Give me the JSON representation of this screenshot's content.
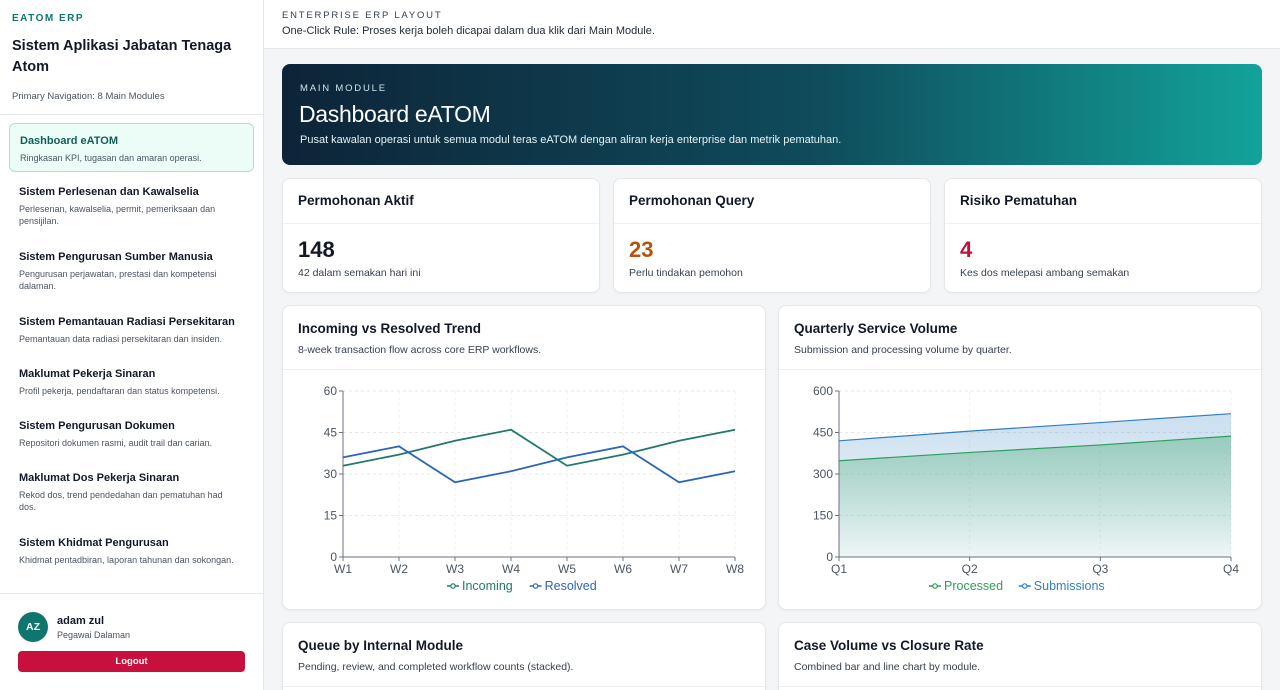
{
  "sidebar": {
    "brand": "EATOM ERP",
    "app_title": "Sistem Aplikasi Jabatan Tenaga Atom",
    "nav_caption": "Primary Navigation: 8 Main Modules",
    "items": [
      {
        "title": "Dashboard eATOM",
        "desc": "Ringkasan KPI, tugasan dan amaran operasi."
      },
      {
        "title": "Sistem Perlesenan dan Kawalselia",
        "desc": "Perlesenan, kawalselia, permit, pemeriksaan dan pensijilan."
      },
      {
        "title": "Sistem Pengurusan Sumber Manusia",
        "desc": "Pengurusan perjawatan, prestasi dan kompetensi dalaman."
      },
      {
        "title": "Sistem Pemantauan Radiasi Persekitaran",
        "desc": "Pemantauan data radiasi persekitaran dan insiden."
      },
      {
        "title": "Maklumat Pekerja Sinaran",
        "desc": "Profil pekerja, pendaftaran dan status kompetensi."
      },
      {
        "title": "Sistem Pengurusan Dokumen",
        "desc": "Repositori dokumen rasmi, audit trail dan carian."
      },
      {
        "title": "Maklumat Dos Pekerja Sinaran",
        "desc": "Rekod dos, trend pendedahan dan pematuhan had dos."
      },
      {
        "title": "Sistem Khidmat Pengurusan",
        "desc": "Khidmat pentadbiran, laporan tahunan dan sokongan."
      }
    ],
    "user": {
      "initials": "AZ",
      "name": "adam zul",
      "role": "Pegawai Dalaman"
    },
    "logout_label": "Logout"
  },
  "topbar": {
    "kicker": "ENTERPRISE ERP LAYOUT",
    "rule": "One-Click Rule: Proses kerja boleh dicapai dalam dua klik dari Main Module."
  },
  "hero": {
    "kicker": "MAIN MODULE",
    "title": "Dashboard eATOM",
    "subtitle": "Pusat kawalan operasi untuk semua modul teras eATOM dengan aliran kerja enterprise dan metrik pematuhan."
  },
  "kpis": [
    {
      "title": "Permohonan Aktif",
      "value": "148",
      "sub": "42 dalam semakan hari ini",
      "color": "#111827"
    },
    {
      "title": "Permohonan Query",
      "value": "23",
      "sub": "Perlu tindakan pemohon",
      "color": "#b45309"
    },
    {
      "title": "Risiko Pematuhan",
      "value": "4",
      "sub": "Kes dos melepasi ambang semakan",
      "color": "#be123c"
    }
  ],
  "cards": {
    "trend": {
      "title": "Incoming vs Resolved Trend",
      "subtitle": "8-week transaction flow across core ERP workflows."
    },
    "quarterly": {
      "title": "Quarterly Service Volume",
      "subtitle": "Submission and processing volume by quarter."
    },
    "queue": {
      "title": "Queue by Internal Module",
      "subtitle": "Pending, review, and completed workflow counts (stacked)."
    },
    "case": {
      "title": "Case Volume vs Closure Rate",
      "subtitle": "Combined bar and line chart by module."
    }
  },
  "chart_data": [
    {
      "type": "line",
      "title": "Incoming vs Resolved Trend",
      "x": [
        "W1",
        "W2",
        "W3",
        "W4",
        "W5",
        "W6",
        "W7",
        "W8"
      ],
      "ylim": [
        0,
        60
      ],
      "yticks": [
        0,
        15,
        30,
        45,
        60
      ],
      "grid": true,
      "legend": "bottom",
      "series": [
        {
          "name": "Incoming",
          "color": "#1f7a6b",
          "values": [
            33,
            37,
            42,
            46,
            33,
            37,
            42,
            46
          ]
        },
        {
          "name": "Resolved",
          "color": "#2c66b8",
          "values": [
            36,
            40,
            27,
            31,
            36,
            40,
            27,
            31
          ]
        }
      ]
    },
    {
      "type": "area",
      "title": "Quarterly Service Volume",
      "x": [
        "Q1",
        "Q2",
        "Q3",
        "Q4"
      ],
      "ylim": [
        0,
        600
      ],
      "yticks": [
        0,
        150,
        300,
        450,
        600
      ],
      "grid": true,
      "legend": "bottom",
      "series": [
        {
          "name": "Processed",
          "color": "#2e9e5e",
          "values": [
            348,
            378,
            405,
            437
          ]
        },
        {
          "name": "Submissions",
          "color": "#2f7fc1",
          "values": [
            420,
            455,
            486,
            518
          ]
        }
      ]
    }
  ]
}
